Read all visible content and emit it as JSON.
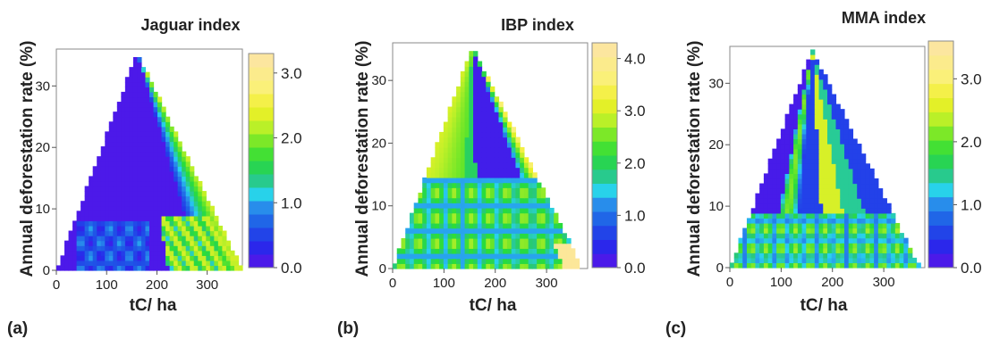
{
  "chart_data": [
    {
      "type": "heatmap",
      "panel_label": "(a)",
      "title": "Jaguar index",
      "xlabel": "tC/ ha",
      "ylabel": "Annual deforestation rate  (%)",
      "xlim": [
        0,
        370
      ],
      "ylim": [
        0,
        36
      ],
      "xticks": [
        "0",
        "100",
        "200",
        "300"
      ],
      "yticks": [
        "0",
        "10",
        "20",
        "30"
      ],
      "colorbar_ticks": [
        "0.0",
        "1.0",
        "2.0",
        "3.0"
      ],
      "colorbar_range": [
        0,
        3.3
      ],
      "data_region": {
        "apex": [
          160,
          35.5
        ],
        "base": [
          0,
          370
        ]
      },
      "colors": {
        "low": "#5b13e8",
        "high": "#fde3a8"
      }
    },
    {
      "type": "heatmap",
      "panel_label": "(b)",
      "title": "IBP index",
      "xlabel": "tC/ ha",
      "ylabel": "Annual deforestation rate  (%)",
      "xlim": [
        0,
        380
      ],
      "ylim": [
        0,
        36
      ],
      "xticks": [
        "0",
        "100",
        "200",
        "300"
      ],
      "yticks": [
        "0",
        "10",
        "20",
        "30"
      ],
      "colorbar_ticks": [
        "0.0",
        "1.0",
        "2.0",
        "3.0",
        "4.0"
      ],
      "colorbar_range": [
        0,
        4.3
      ],
      "data_region": {
        "apex": [
          155,
          35.5
        ],
        "base": [
          0,
          370
        ]
      },
      "colors": {
        "low": "#5b13e8",
        "high": "#fde3a8"
      }
    },
    {
      "type": "heatmap",
      "panel_label": "(c)",
      "title": "MMA index",
      "xlabel": "tC/ ha",
      "ylabel": "Annual deforestation rate  (%)",
      "xlim": [
        0,
        380
      ],
      "ylim": [
        0,
        36
      ],
      "xticks": [
        "0",
        "100",
        "200",
        "300"
      ],
      "yticks": [
        "0",
        "10",
        "20",
        "30"
      ],
      "colorbar_ticks": [
        "0.0",
        "1.0",
        "2.0",
        "3.0"
      ],
      "colorbar_range": [
        0,
        3.6
      ],
      "data_region": {
        "apex": [
          160,
          35.5
        ],
        "base": [
          0,
          370
        ]
      },
      "colors": {
        "low": "#5b13e8",
        "high": "#fde3a8"
      }
    }
  ]
}
